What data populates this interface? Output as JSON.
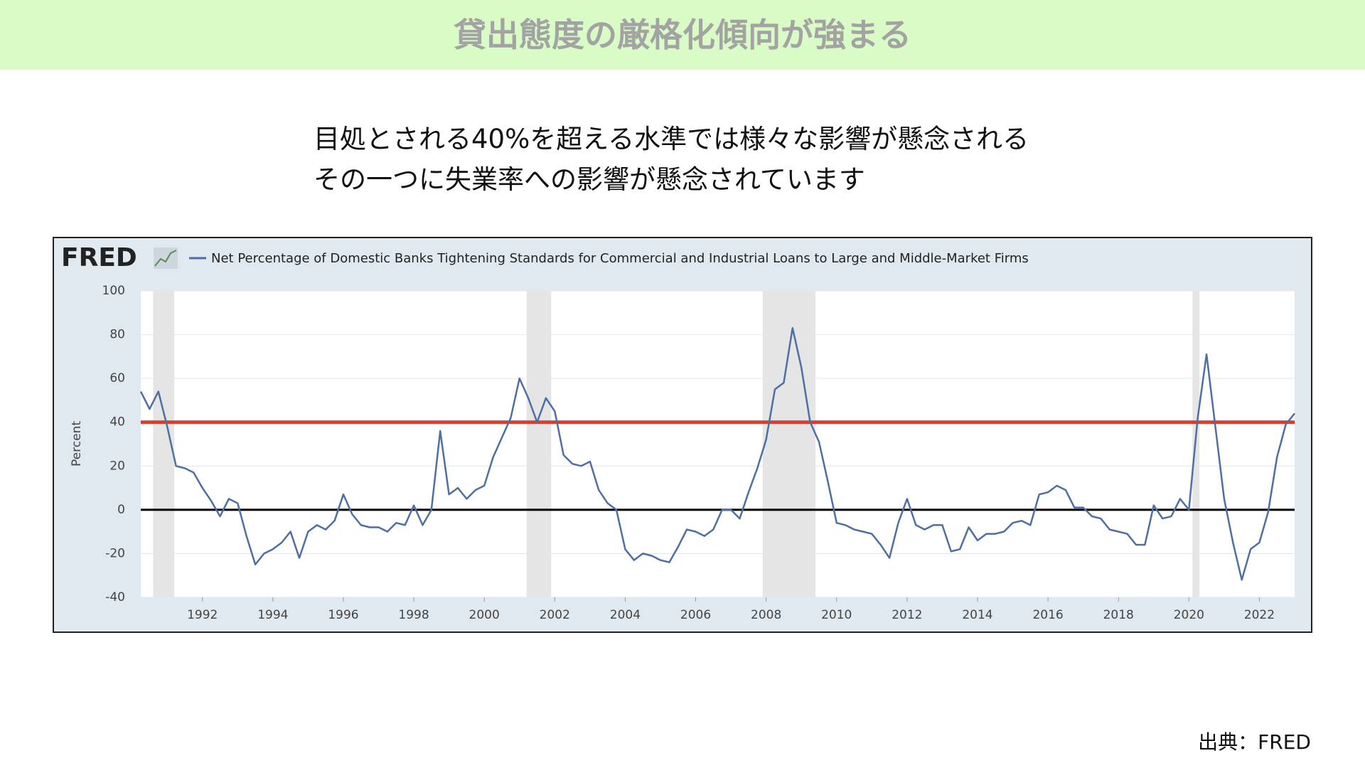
{
  "header": {
    "title": "貸出態度の厳格化傾向が強まる"
  },
  "subtitle": [
    "目処とされる40%を超える水準では様々な影響が懸念される",
    "その一つに失業率への影響が懸念されています"
  ],
  "source": "出典：FRED",
  "chart_data": {
    "type": "line",
    "logo": "FRED",
    "y_label": "Percent",
    "x": [
      1990.25,
      1990.5,
      1990.75,
      1991,
      1991.25,
      1991.5,
      1991.75,
      1992,
      1992.25,
      1992.5,
      1992.75,
      1993,
      1993.25,
      1993.5,
      1993.75,
      1994,
      1994.25,
      1994.5,
      1994.75,
      1995,
      1995.25,
      1995.5,
      1995.75,
      1996,
      1996.25,
      1996.5,
      1996.75,
      1997,
      1997.25,
      1997.5,
      1997.75,
      1998,
      1998.25,
      1998.5,
      1998.75,
      1999,
      1999.25,
      1999.5,
      1999.75,
      2000,
      2000.25,
      2000.5,
      2000.75,
      2001,
      2001.25,
      2001.5,
      2001.75,
      2002,
      2002.25,
      2002.5,
      2002.75,
      2003,
      2003.25,
      2003.5,
      2003.75,
      2004,
      2004.25,
      2004.5,
      2004.75,
      2005,
      2005.25,
      2005.5,
      2005.75,
      2006,
      2006.25,
      2006.5,
      2006.75,
      2007,
      2007.25,
      2007.5,
      2007.75,
      2008,
      2008.25,
      2008.5,
      2008.75,
      2009,
      2009.25,
      2009.5,
      2009.75,
      2010,
      2010.25,
      2010.5,
      2010.75,
      2011,
      2011.25,
      2011.5,
      2011.75,
      2012,
      2012.25,
      2012.5,
      2012.75,
      2013,
      2013.25,
      2013.5,
      2013.75,
      2014,
      2014.25,
      2014.5,
      2014.75,
      2015,
      2015.25,
      2015.5,
      2015.75,
      2016,
      2016.25,
      2016.5,
      2016.75,
      2017,
      2017.25,
      2017.5,
      2017.75,
      2018,
      2018.25,
      2018.5,
      2018.75,
      2019,
      2019.25,
      2019.5,
      2019.75,
      2020,
      2020.25,
      2020.5,
      2020.75,
      2021,
      2021.25,
      2021.5,
      2021.75,
      2022,
      2022.25,
      2022.5,
      2022.75,
      2023
    ],
    "series": [
      {
        "name": "Net Percentage of Domestic Banks Tightening Standards for Commercial and Industrial Loans to Large and Middle-Market Firms",
        "color": "#4e6fa3",
        "values": [
          54,
          46,
          54,
          38,
          20,
          19,
          17,
          10,
          4,
          -3,
          5,
          3,
          -12,
          -25,
          -20,
          -18,
          -15,
          -10,
          -22,
          -10,
          -7,
          -9,
          -5,
          7,
          -2,
          -7,
          -8,
          -8,
          -10,
          -6,
          -7,
          2,
          -7,
          0,
          36,
          7,
          10,
          5,
          9,
          11,
          24,
          33,
          42,
          60,
          51,
          40,
          51,
          45,
          25,
          21,
          20,
          22,
          9,
          3,
          0,
          -18,
          -23,
          -20,
          -21,
          -23,
          -24,
          -17,
          -9,
          -10,
          -12,
          -9,
          0,
          0,
          -4,
          8,
          19,
          32,
          55,
          58,
          83,
          65,
          40,
          31,
          13,
          -6,
          -7,
          -9,
          -10,
          -11,
          -16,
          -22,
          -6,
          5,
          -7,
          -9,
          -7,
          -7,
          -19,
          -18,
          -8,
          -14,
          -11,
          -11,
          -10,
          -6,
          -5,
          -7,
          7,
          8,
          11,
          9,
          1,
          1,
          -3,
          -4,
          -9,
          -10,
          -11,
          -16,
          -16,
          2,
          -4,
          -3,
          5,
          0,
          42,
          71,
          38,
          5,
          -15,
          -32,
          -18,
          -15,
          -1,
          24,
          39,
          44
        ]
      }
    ],
    "recessions": [
      [
        1990.6,
        1991.2
      ],
      [
        2001.2,
        2001.9
      ],
      [
        2007.9,
        2009.4
      ],
      [
        2020.1,
        2020.3
      ]
    ],
    "reference_line": 40,
    "reference_color": "#e03a2a",
    "xlim": [
      1990.25,
      2023
    ],
    "xticks": [
      1992,
      1994,
      1996,
      1998,
      2000,
      2002,
      2004,
      2006,
      2008,
      2010,
      2012,
      2014,
      2016,
      2018,
      2020,
      2022
    ],
    "ylim": [
      -40,
      100
    ],
    "yticks": [
      -40,
      -20,
      0,
      20,
      40,
      60,
      80,
      100
    ],
    "grid": true
  }
}
